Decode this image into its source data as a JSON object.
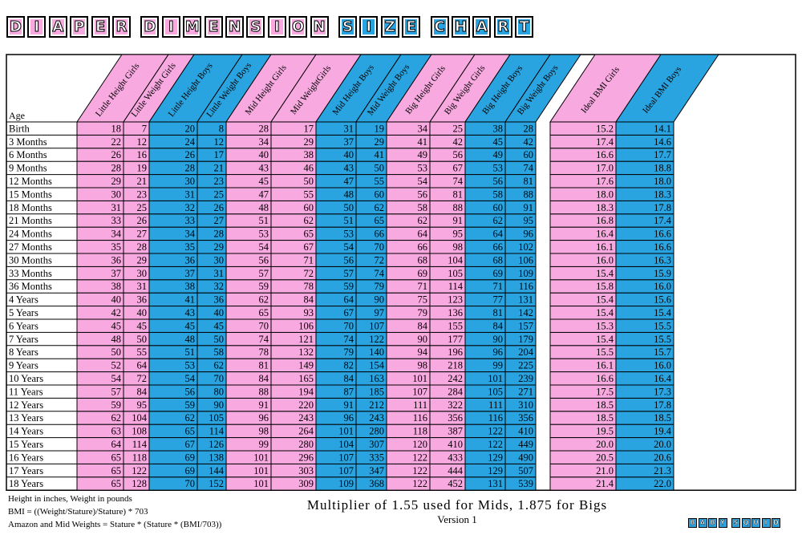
{
  "title": "DIAPER DIMENSION SIZE CHART",
  "colors": {
    "pink": "#f8a9e0",
    "blue": "#2aa4e0",
    "border": "#000000",
    "background": "#ffffff"
  },
  "chart_data": {
    "type": "table",
    "row_header_label": "Age",
    "rows": [
      "Birth",
      "3 Months",
      "6 Months",
      "9 Months",
      "12 Months",
      "15 Months",
      "18 Months",
      "21 Months",
      "24 Months",
      "27 Months",
      "30 Months",
      "33 Months",
      "36 Months",
      "4 Years",
      "5 Years",
      "6 Years",
      "7 Years",
      "8 Years",
      "9 Years",
      "10 Years",
      "11 Years",
      "12 Years",
      "13 Years",
      "14 Years",
      "15 Years",
      "16 Years",
      "17 Years",
      "18 Years"
    ],
    "columns": [
      {
        "name": "Little Height Girls",
        "color": "pink",
        "values": [
          18,
          22,
          26,
          28,
          29,
          30,
          31,
          33,
          34,
          35,
          36,
          37,
          38,
          40,
          42,
          45,
          48,
          50,
          52,
          54,
          57,
          59,
          62,
          63,
          64,
          65,
          65,
          65
        ]
      },
      {
        "name": "Little Weight Girls",
        "color": "pink",
        "values": [
          7,
          12,
          16,
          19,
          21,
          23,
          25,
          26,
          27,
          28,
          29,
          30,
          31,
          36,
          40,
          45,
          50,
          55,
          64,
          72,
          84,
          95,
          104,
          108,
          114,
          118,
          122,
          128
        ]
      },
      {
        "name": "Little Height Boys",
        "color": "blue",
        "values": [
          20,
          24,
          26,
          28,
          30,
          31,
          32,
          33,
          34,
          35,
          36,
          37,
          38,
          41,
          43,
          45,
          48,
          51,
          53,
          54,
          56,
          59,
          62,
          65,
          67,
          69,
          69,
          70
        ]
      },
      {
        "name": "Little Weight Boys",
        "color": "blue",
        "values": [
          8,
          12,
          17,
          21,
          23,
          25,
          26,
          27,
          28,
          29,
          30,
          31,
          32,
          36,
          40,
          45,
          50,
          58,
          62,
          70,
          80,
          90,
          105,
          114,
          126,
          138,
          144,
          152
        ]
      },
      {
        "name": "Mid Height Girls",
        "color": "pink",
        "values": [
          28,
          34,
          40,
          43,
          45,
          47,
          48,
          51,
          53,
          54,
          56,
          57,
          59,
          62,
          65,
          70,
          74,
          78,
          81,
          84,
          88,
          91,
          96,
          98,
          99,
          101,
          101,
          101
        ]
      },
      {
        "name": "Mid WeightGirls",
        "color": "pink",
        "values": [
          17,
          29,
          38,
          46,
          50,
          55,
          60,
          62,
          65,
          67,
          71,
          72,
          78,
          84,
          93,
          106,
          121,
          132,
          149,
          165,
          194,
          220,
          243,
          264,
          280,
          296,
          303,
          309
        ]
      },
      {
        "name": "Mid Height Boys",
        "color": "blue",
        "values": [
          31,
          37,
          40,
          43,
          47,
          48,
          50,
          51,
          53,
          54,
          56,
          57,
          59,
          64,
          67,
          70,
          74,
          79,
          82,
          84,
          87,
          91,
          96,
          101,
          104,
          107,
          107,
          109
        ]
      },
      {
        "name": "Mid Weight Boys",
        "color": "blue",
        "values": [
          19,
          29,
          41,
          50,
          55,
          60,
          62,
          65,
          66,
          70,
          72,
          74,
          79,
          90,
          97,
          107,
          122,
          140,
          154,
          163,
          185,
          212,
          243,
          280,
          307,
          335,
          347,
          368
        ]
      },
      {
        "name": "Big Height Girls",
        "color": "pink",
        "values": [
          34,
          41,
          49,
          53,
          54,
          56,
          58,
          62,
          64,
          66,
          68,
          69,
          71,
          75,
          79,
          84,
          90,
          94,
          98,
          101,
          107,
          111,
          116,
          118,
          120,
          122,
          122,
          122
        ]
      },
      {
        "name": "Big Weight Girls",
        "color": "pink",
        "values": [
          25,
          42,
          56,
          67,
          74,
          81,
          88,
          91,
          95,
          98,
          104,
          105,
          114,
          123,
          136,
          155,
          177,
          196,
          218,
          242,
          284,
          322,
          356,
          387,
          410,
          433,
          444,
          452
        ]
      },
      {
        "name": "Big Height Boys",
        "color": "blue",
        "values": [
          38,
          45,
          49,
          53,
          56,
          58,
          60,
          62,
          64,
          66,
          68,
          69,
          71,
          77,
          81,
          84,
          90,
          96,
          99,
          101,
          105,
          111,
          116,
          122,
          122,
          129,
          129,
          131
        ]
      },
      {
        "name": "Big Weight Boys",
        "color": "blue",
        "values": [
          28,
          42,
          60,
          74,
          81,
          88,
          91,
          95,
          96,
          102,
          106,
          109,
          116,
          131,
          142,
          157,
          179,
          204,
          225,
          239,
          271,
          310,
          356,
          410,
          449,
          490,
          507,
          539
        ]
      },
      {
        "name": "Ideal BMI Girls",
        "color": "pink",
        "values": [
          "15.2",
          "17.4",
          "16.6",
          "17.0",
          "17.6",
          "18.0",
          "18.3",
          "16.8",
          "16.4",
          "16.1",
          "16.0",
          "15.4",
          "15.8",
          "15.4",
          "15.4",
          "15.3",
          "15.4",
          "15.5",
          "16.1",
          "16.6",
          "17.5",
          "18.5",
          "18.5",
          "19.5",
          "20.0",
          "20.5",
          "21.0",
          "21.4"
        ]
      },
      {
        "name": "Ideal BMI Boys",
        "color": "blue",
        "values": [
          "14.1",
          "14.6",
          "17.7",
          "18.8",
          "18.0",
          "18.3",
          "17.8",
          "17.4",
          "16.6",
          "16.6",
          "16.3",
          "15.9",
          "16.0",
          "15.6",
          "15.4",
          "15.5",
          "15.5",
          "15.7",
          "16.0",
          "16.4",
          "17.3",
          "17.8",
          "18.5",
          "19.4",
          "20.0",
          "20.6",
          "21.3",
          "22.0"
        ]
      }
    ]
  },
  "footer": {
    "units_note": "Height in inches, Weight in pounds",
    "bmi_formula": "BMI = ((Weight/Stature)/Stature) * 703",
    "weights_formula": "Amazon and Mid Weights = Stature * (Stature * (BMI/703))",
    "multiplier_note": "Multiplier of 1.55 used for Mids, 1.875 for Bigs",
    "version": "Version 1"
  },
  "brand": "BABY SQUID"
}
